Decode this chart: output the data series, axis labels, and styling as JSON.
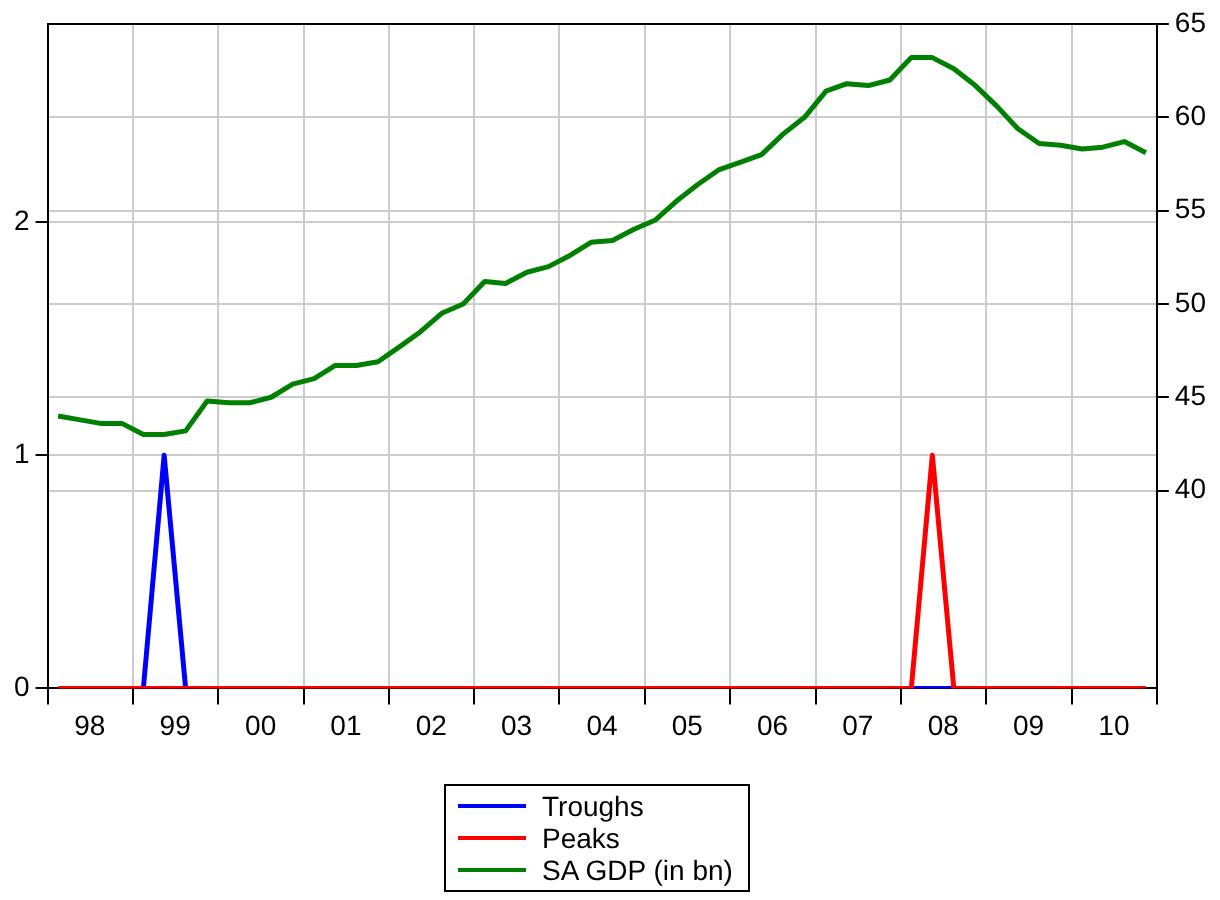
{
  "chart_data": {
    "type": "line",
    "x": [
      "1998-02-15",
      "1998-05-15",
      "1998-08-15",
      "1998-11-15",
      "1999-02-15",
      "1999-05-15",
      "1999-08-15",
      "1999-11-15",
      "2000-02-15",
      "2000-05-15",
      "2000-08-15",
      "2000-11-15",
      "2001-02-15",
      "2001-05-15",
      "2001-08-15",
      "2001-11-15",
      "2002-02-15",
      "2002-05-15",
      "2002-08-15",
      "2002-11-15",
      "2003-02-15",
      "2003-05-15",
      "2003-08-15",
      "2003-11-15",
      "2004-02-15",
      "2004-05-15",
      "2004-08-15",
      "2004-11-15",
      "2005-02-15",
      "2005-05-15",
      "2005-08-15",
      "2005-11-15",
      "2006-02-15",
      "2006-05-15",
      "2006-08-15",
      "2006-11-15",
      "2007-02-15",
      "2007-05-15",
      "2007-08-15",
      "2007-11-15",
      "2008-02-15",
      "2008-05-15",
      "2008-08-15",
      "2008-11-15",
      "2009-02-15",
      "2009-05-15",
      "2009-08-15",
      "2009-11-15",
      "2010-02-15",
      "2010-05-15",
      "2010-08-15",
      "2010-11-15"
    ],
    "series": [
      {
        "name": "Troughs",
        "color": "#0000ff",
        "values": [
          null,
          null,
          null,
          null,
          0,
          1,
          0,
          null,
          null,
          null,
          null,
          null,
          null,
          null,
          null,
          null,
          null,
          null,
          null,
          null,
          null,
          null,
          null,
          null,
          null,
          null,
          null,
          null,
          null,
          null,
          null,
          null,
          null,
          null,
          null,
          null,
          null,
          null,
          null,
          null,
          0,
          0,
          0,
          null,
          null,
          null,
          null,
          null,
          null,
          null,
          null,
          null
        ]
      },
      {
        "name": "Peaks",
        "color": "#ff0000",
        "values": [
          0,
          0,
          0,
          0,
          0,
          0,
          0,
          0,
          0,
          0,
          0,
          0,
          0,
          0,
          0,
          0,
          0,
          0,
          0,
          0,
          0,
          0,
          0,
          0,
          0,
          0,
          0,
          0,
          0,
          0,
          0,
          0,
          0,
          0,
          0,
          0,
          0,
          0,
          0,
          0,
          0,
          1,
          0,
          0,
          0,
          0,
          0,
          0,
          0,
          0,
          0,
          0
        ]
      },
      {
        "name": "SA GDP (in bn)",
        "color": "#008000",
        "axis": "y2",
        "values": [
          44.0,
          43.8,
          43.6,
          43.6,
          43.0,
          43.0,
          43.2,
          44.8,
          44.7,
          44.7,
          45.0,
          45.7,
          46.0,
          46.7,
          46.7,
          46.9,
          47.7,
          48.5,
          49.5,
          50.0,
          51.2,
          51.1,
          51.7,
          52.0,
          52.6,
          53.3,
          53.4,
          54.0,
          54.5,
          55.5,
          56.4,
          57.2,
          57.6,
          58.0,
          59.1,
          60.0,
          61.4,
          61.8,
          61.7,
          62.0,
          63.2,
          63.2,
          62.6,
          61.7,
          60.6,
          59.4,
          58.6,
          58.5,
          58.3,
          58.4,
          58.7,
          58.1
        ]
      }
    ],
    "xlim": [
      "1998-01",
      "2011-01"
    ],
    "xticks": [
      {
        "value": "1998-01",
        "label": null
      },
      {
        "value": "1998-07",
        "label": "98"
      },
      {
        "value": "1999-01",
        "label": null
      },
      {
        "value": "1999-07",
        "label": "99"
      },
      {
        "value": "2000-01",
        "label": null
      },
      {
        "value": "2000-07",
        "label": "00"
      },
      {
        "value": "2001-01",
        "label": null
      },
      {
        "value": "2001-07",
        "label": "01"
      },
      {
        "value": "2002-01",
        "label": null
      },
      {
        "value": "2002-07",
        "label": "02"
      },
      {
        "value": "2003-01",
        "label": null
      },
      {
        "value": "2003-07",
        "label": "03"
      },
      {
        "value": "2004-01",
        "label": null
      },
      {
        "value": "2004-07",
        "label": "04"
      },
      {
        "value": "2005-01",
        "label": null
      },
      {
        "value": "2005-07",
        "label": "05"
      },
      {
        "value": "2006-01",
        "label": null
      },
      {
        "value": "2006-07",
        "label": "06"
      },
      {
        "value": "2007-01",
        "label": null
      },
      {
        "value": "2007-07",
        "label": "07"
      },
      {
        "value": "2008-01",
        "label": null
      },
      {
        "value": "2008-07",
        "label": "08"
      },
      {
        "value": "2009-01",
        "label": null
      },
      {
        "value": "2009-07",
        "label": "09"
      },
      {
        "value": "2010-01",
        "label": null
      },
      {
        "value": "2010-07",
        "label": "10"
      },
      {
        "value": "2011-01",
        "label": null
      }
    ],
    "ylim": [
      0,
      2.85
    ],
    "yticks": [
      0,
      1,
      2
    ],
    "y2lim": [
      29.4,
      65
    ],
    "y2ticks": [
      40,
      45,
      50,
      55,
      60,
      65
    ],
    "grid": true,
    "legend": "bottom",
    "marker": "none",
    "line_style": "solid"
  }
}
